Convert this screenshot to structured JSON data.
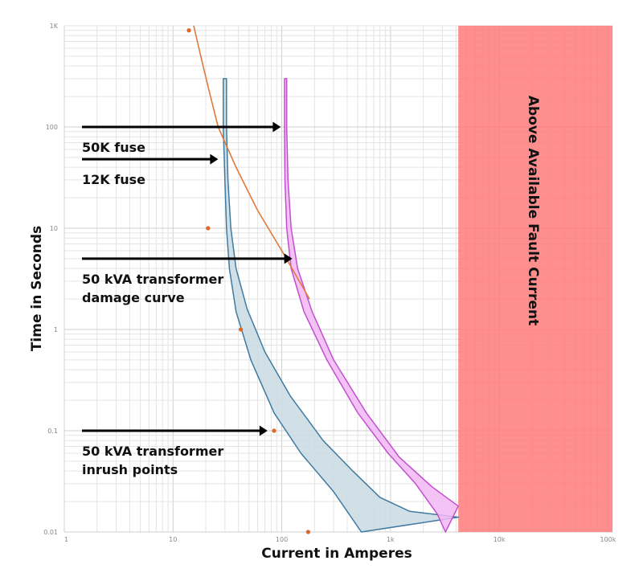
{
  "chart_data": {
    "type": "line",
    "title": "",
    "xlabel": "Current in Amperes",
    "ylabel": "Time in Seconds",
    "x_scale": "log",
    "y_scale": "log",
    "xlim": [
      1,
      110000
    ],
    "ylim": [
      0.01,
      1000
    ],
    "grid": true,
    "x_ticks": [
      {
        "value": 1,
        "label": "1"
      },
      {
        "value": 10,
        "label": "10"
      },
      {
        "value": 100,
        "label": "100"
      },
      {
        "value": 1000,
        "label": "1k"
      },
      {
        "value": 10000,
        "label": "10k"
      },
      {
        "value": 100000,
        "label": "100k"
      }
    ],
    "y_ticks": [
      {
        "value": 0.01,
        "label": "0.01"
      },
      {
        "value": 0.1,
        "label": "0.1"
      },
      {
        "value": 1,
        "label": "1"
      },
      {
        "value": 10,
        "label": "10"
      },
      {
        "value": 100,
        "label": "100"
      },
      {
        "value": 1000,
        "label": "1K"
      }
    ],
    "colors": {
      "fuse_12k_fill": "#c9dbe3",
      "fuse_12k_edge": "#3f7aa0",
      "fuse_50k_fill": "#f2b8f4",
      "fuse_50k_edge": "#c24fd0",
      "damage_curve": "#e07a3a",
      "inrush_points": "#e0662a",
      "fault_region": "#ff7a7a",
      "arrow": "#000000"
    },
    "series": [
      {
        "kind": "band",
        "upper": [
          [
            29,
            300
          ],
          [
            31,
            300
          ],
          [
            31,
            100
          ],
          [
            32,
            30
          ],
          [
            34,
            10
          ],
          [
            38,
            4
          ],
          [
            48,
            1.6
          ],
          [
            70,
            0.6
          ],
          [
            120,
            0.22
          ],
          [
            240,
            0.08
          ],
          [
            450,
            0.04
          ],
          [
            800,
            0.022
          ],
          [
            1500,
            0.016
          ],
          [
            4200,
            0.014
          ]
        ],
        "lower": [
          [
            29,
            300
          ],
          [
            29,
            100
          ],
          [
            30,
            30
          ],
          [
            31,
            10
          ],
          [
            33,
            4
          ],
          [
            38,
            1.5
          ],
          [
            52,
            0.5
          ],
          [
            85,
            0.15
          ],
          [
            150,
            0.06
          ],
          [
            300,
            0.025
          ],
          [
            540,
            0.01
          ]
        ]
      },
      {
        "kind": "band",
        "upper": [
          [
            106,
            300
          ],
          [
            111,
            300
          ],
          [
            111,
            100
          ],
          [
            114,
            30
          ],
          [
            122,
            10
          ],
          [
            140,
            4
          ],
          [
            190,
            1.5
          ],
          [
            300,
            0.5
          ],
          [
            600,
            0.15
          ],
          [
            1200,
            0.055
          ],
          [
            2400,
            0.028
          ],
          [
            4200,
            0.018
          ]
        ],
        "lower": [
          [
            106,
            300
          ],
          [
            106,
            100
          ],
          [
            107,
            30
          ],
          [
            111,
            10
          ],
          [
            122,
            4
          ],
          [
            160,
            1.5
          ],
          [
            260,
            0.5
          ],
          [
            500,
            0.15
          ],
          [
            950,
            0.06
          ],
          [
            1700,
            0.03
          ],
          [
            2700,
            0.015
          ],
          [
            3200,
            0.01
          ]
        ]
      },
      {
        "kind": "line",
        "points": [
          [
            15.5,
            1000
          ],
          [
            18,
            500
          ],
          [
            21,
            250
          ],
          [
            26,
            100
          ],
          [
            38,
            40
          ],
          [
            60,
            15
          ],
          [
            100,
            6
          ],
          [
            180,
            2
          ]
        ]
      },
      {
        "kind": "scatter",
        "points": [
          [
            14,
            900
          ],
          [
            21,
            10
          ],
          [
            42,
            1
          ],
          [
            85,
            0.1
          ],
          [
            175,
            0.01
          ]
        ]
      }
    ],
    "fault_region": {
      "x_from": 4200,
      "x_to": 110000,
      "label": "Above Available Fault Current"
    },
    "annotations": [
      {
        "lines": [
          "50K fuse"
        ],
        "arrow_to": [
          98,
          100
        ]
      },
      {
        "lines": [
          "12K fuse"
        ],
        "arrow_to": [
          26,
          48
        ]
      },
      {
        "lines": [
          "50 kVA transformer",
          "damage curve"
        ],
        "arrow_to": [
          125,
          5
        ]
      },
      {
        "lines": [
          "50 kVA transformer",
          "inrush points"
        ],
        "arrow_to": [
          74,
          0.1
        ]
      }
    ]
  }
}
